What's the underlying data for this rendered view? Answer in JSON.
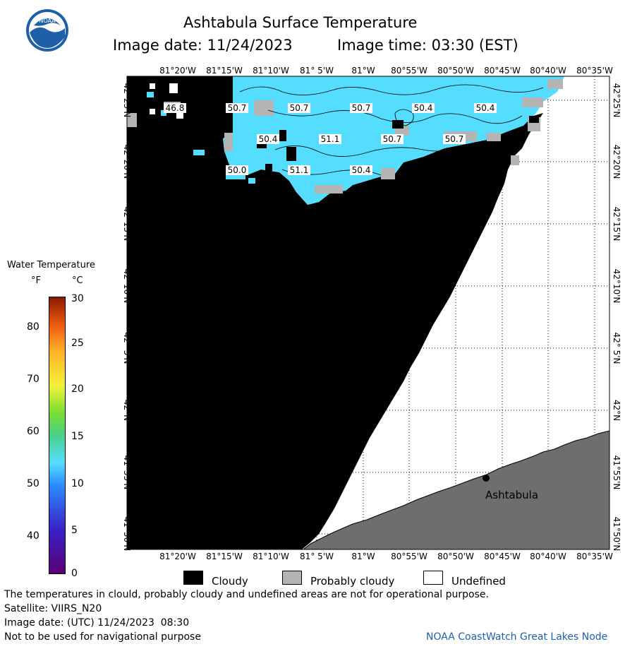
{
  "header": {
    "title": "Ashtabula Surface Temperature",
    "image_date_label": "Image date: 11/24/2023",
    "image_time_label": "Image time: 03:30 (EST)",
    "logo_text": "NOAA"
  },
  "map": {
    "lon_labels": [
      "81°20'W",
      "81°15'W",
      "81°10'W",
      "81° 5'W",
      "81°W",
      "80°55'W",
      "80°50'W",
      "80°45'W",
      "80°40'W",
      "80°35'W"
    ],
    "lat_labels": [
      "42°25'N",
      "42°20'N",
      "42°15'N",
      "42°10'N",
      "42° 5'N",
      "42°N",
      "41°55'N",
      "41°50'N"
    ],
    "temperature_labels": [
      "46.8",
      "50.7",
      "50.7",
      "50.7",
      "50.4",
      "50.4",
      "50.4",
      "51.1",
      "50.7",
      "50.7",
      "50.0",
      "51.1",
      "50.4"
    ],
    "city_label": "Ashtabula",
    "colors": {
      "cloudy": "#000000",
      "water": "#55ddff",
      "probably_cloudy": "#b4b4b4",
      "land": "#6e6e6e",
      "undefined": "#ffffff"
    }
  },
  "colorbar": {
    "title": "Water Temperature",
    "unit_f": "°F",
    "unit_c": "°C",
    "f_ticks": [
      "80",
      "70",
      "60",
      "50",
      "40"
    ],
    "c_ticks": [
      "30",
      "25",
      "20",
      "15",
      "10",
      "5",
      "0"
    ]
  },
  "legend": {
    "cloudy": "Cloudy",
    "probably_cloudy": "Probably cloudy",
    "undefined": "Undefined"
  },
  "footer": {
    "disclaimer": "The temperatures in clould, probably cloudy and undefined areas are not for operational purpose.",
    "satellite": "Satellite: VIIRS_N20",
    "utc_date": "Image date: (UTC) 11/24/2023  08:30",
    "navigation": "Not to be used for navigational purpose",
    "credit": "NOAA CoastWatch Great Lakes Node"
  }
}
